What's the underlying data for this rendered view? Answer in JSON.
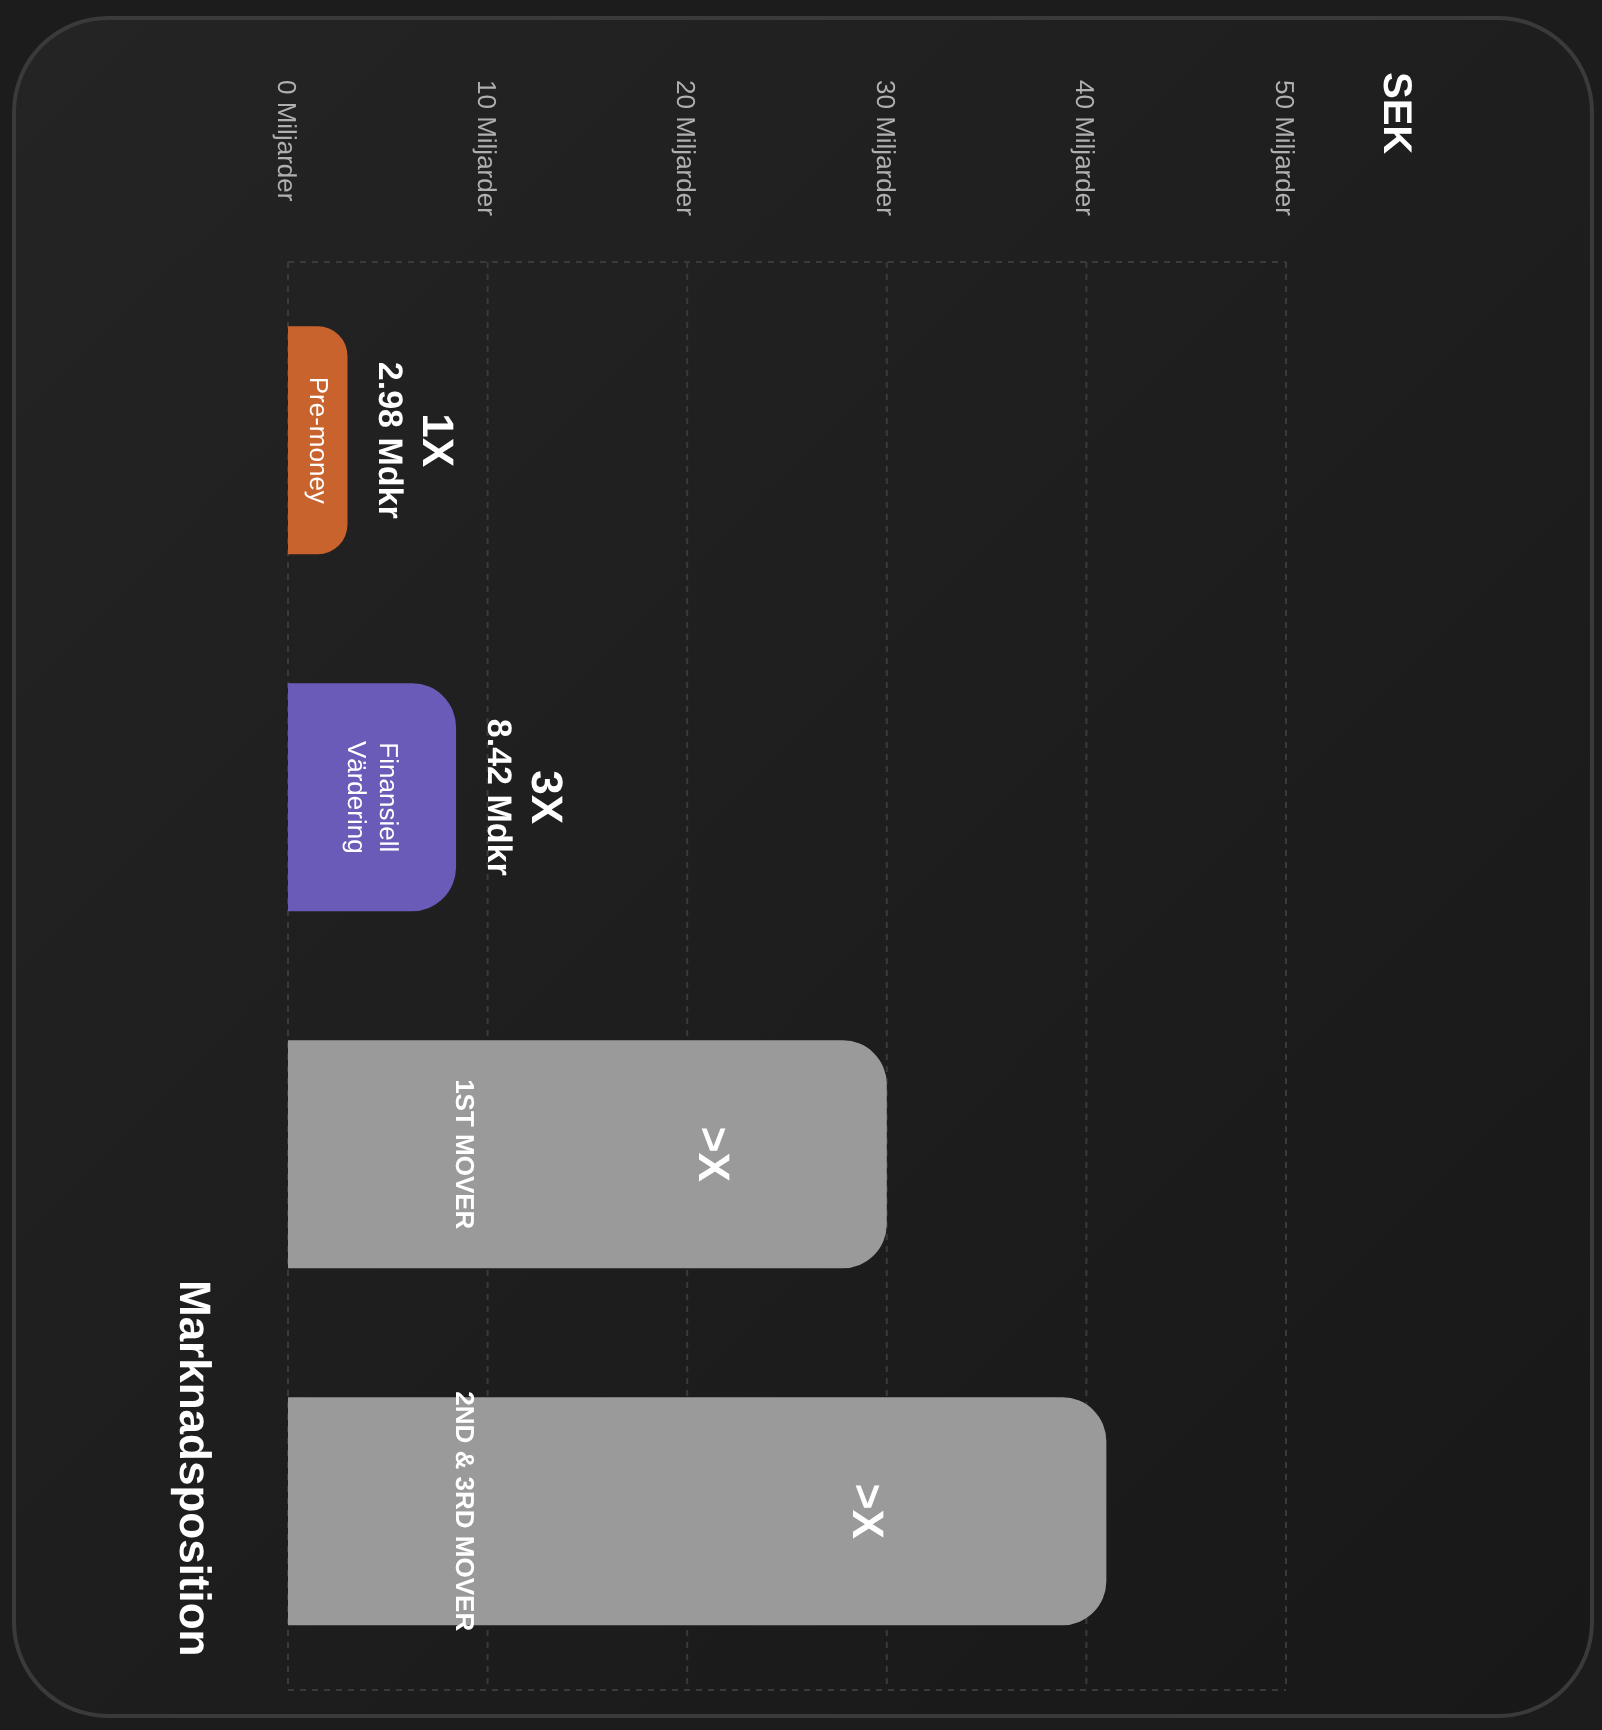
{
  "chart_data": {
    "type": "bar",
    "orientation": "horizontal",
    "title": "SEK",
    "ylabel": "Marknadsposition",
    "categories": [
      "Pre-money",
      "Finansiell Värdering",
      "1ST MOVER",
      "2ND & 3RD  MOVER"
    ],
    "values": [
      2.98,
      8.42,
      30,
      41
    ],
    "colors": [
      "#c8632e",
      "#6b5bb8",
      "#9a9a9a",
      "#9a9a9a"
    ],
    "value_labels": [
      "1X\n2.98 Mdkr",
      "3X\n8.42 Mdkr",
      ">X",
      ">X"
    ],
    "xlim": [
      0,
      50
    ],
    "xticks": [
      {
        "value": 0,
        "label": "0 Miljarder"
      },
      {
        "value": 10,
        "label": "10 Miljarder"
      },
      {
        "value": 20,
        "label": "20 Miljarder"
      },
      {
        "value": 30,
        "label": "30 Miljarder"
      },
      {
        "value": 40,
        "label": "40 Miljarder"
      },
      {
        "value": 50,
        "label": "50 Miljarder"
      }
    ],
    "grid": true
  }
}
